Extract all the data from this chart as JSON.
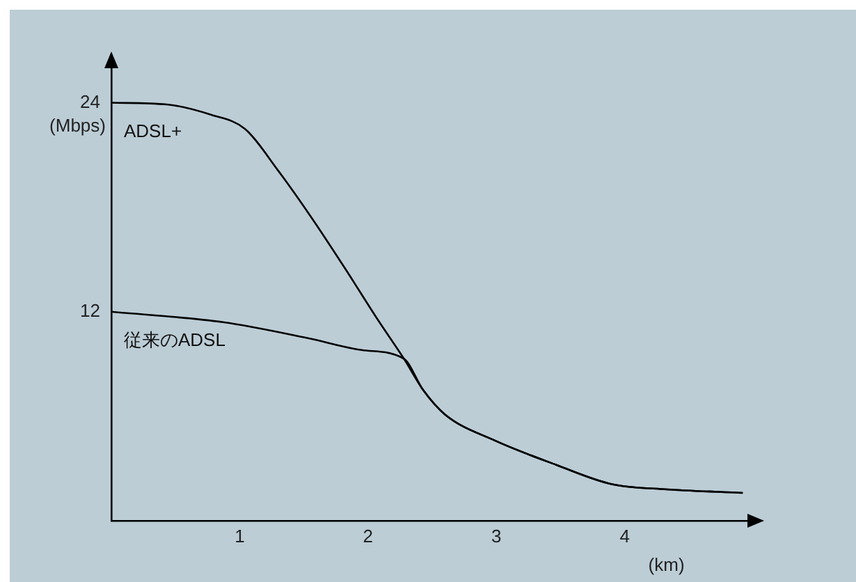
{
  "chart_data": {
    "type": "line",
    "xlabel": "(km)",
    "ylabel": "(Mbps)",
    "xlim": [
      0,
      5
    ],
    "ylim": [
      0,
      26.3
    ],
    "xticks": [
      1,
      2,
      3,
      4
    ],
    "yticks": [
      12,
      24
    ],
    "grid": false,
    "legend": false,
    "marker": "none",
    "line_style": "solid",
    "series": [
      {
        "name": "ADSL+",
        "color": "#000000",
        "x": [
          0,
          0.43,
          0.78,
          1.04,
          1.3,
          1.56,
          1.82,
          2.08,
          2.28,
          2.43,
          2.6,
          2.99,
          3.47,
          3.9,
          4.33,
          4.92
        ],
        "values": [
          24,
          23.9,
          23.3,
          22.5,
          20.1,
          17.4,
          14.5,
          11.5,
          9.3,
          7.5,
          6.1,
          4.6,
          3.2,
          2.1,
          1.8,
          1.6
        ]
      },
      {
        "name": "従来のADSL",
        "color": "#000000",
        "x": [
          0,
          0.87,
          1.52,
          1.95,
          2.28,
          2.43,
          2.6,
          2.99,
          3.47,
          3.9,
          4.33,
          4.92
        ],
        "values": [
          12,
          11.4,
          10.5,
          9.8,
          9.3,
          7.5,
          6.1,
          4.6,
          3.2,
          2.1,
          1.8,
          1.6
        ]
      }
    ]
  }
}
